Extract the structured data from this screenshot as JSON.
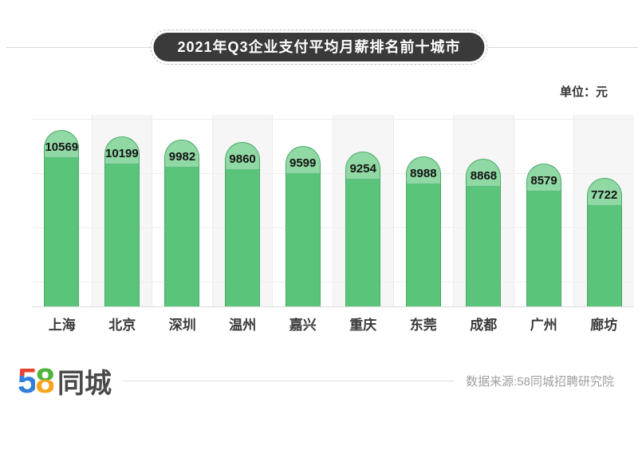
{
  "title": "2021年Q3企业支付平均月薪排名前十城市",
  "unit_label": "单位：元",
  "chart_data": {
    "type": "bar",
    "categories": [
      "上海",
      "北京",
      "深圳",
      "温州",
      "嘉兴",
      "重庆",
      "东莞",
      "成都",
      "广州",
      "廊坊"
    ],
    "values": [
      10569,
      10199,
      9982,
      9860,
      9599,
      9254,
      8988,
      8868,
      8579,
      7722
    ],
    "title": "2021年Q3企业支付平均月薪排名前十城市",
    "xlabel": "",
    "ylabel": "单位：元",
    "ylim": [
      0,
      10569
    ],
    "grid": "horizontal-light",
    "legend": "none",
    "bar_color": "#5ac47b",
    "bar_cap_color": "#90d8a4",
    "bar_border_color": "#4aaa68",
    "alt_column_color": "#f6f6f6"
  },
  "footer": {
    "logo_5": "5",
    "logo_8": "8",
    "logo_cn": "同城",
    "source": "数据来源:58同城招聘研究院"
  },
  "colors": {
    "title_pill_bg": "#3a3a3a",
    "title_pill_text": "#ffffff",
    "value_label": "#141414",
    "city_label": "#3a3a3a",
    "source_text": "#9e9e9e",
    "divider": "#d9d9d9"
  }
}
